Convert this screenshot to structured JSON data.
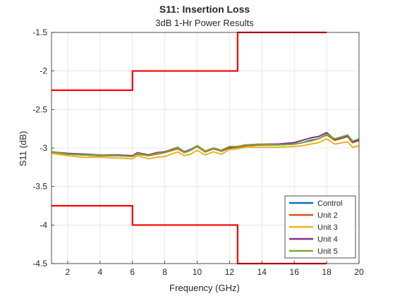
{
  "chart_data": {
    "type": "line",
    "title": "S11: Insertion Loss",
    "subtitle": "3dB 1-Hr Power Results",
    "xlabel": "Frequency (GHz)",
    "ylabel": "S11 (dB)",
    "xlim": [
      1,
      20
    ],
    "ylim": [
      -4.5,
      -1.5
    ],
    "xticks": [
      2,
      4,
      6,
      8,
      10,
      12,
      14,
      16,
      18,
      20
    ],
    "yticks": [
      -1.5,
      -2,
      -2.5,
      -3,
      -3.5,
      -4,
      -4.5
    ],
    "xtick_labels": [
      "2",
      "4",
      "6",
      "8",
      "10",
      "12",
      "14",
      "16",
      "18",
      "20"
    ],
    "ytick_labels": [
      "-1.5",
      "-2",
      "-2.5",
      "-3",
      "-3.5",
      "-4",
      "-4.5"
    ],
    "grid": true,
    "legend_position": "bottom-right",
    "series": [
      {
        "name": "Control",
        "color": "#0072BD",
        "x": [
          1,
          2,
          3,
          4,
          5,
          6,
          6.3,
          7,
          7.5,
          8,
          8.8,
          9.2,
          9.6,
          10,
          10.5,
          11,
          11.5,
          12,
          12.5,
          13,
          14,
          15,
          16,
          16.5,
          17,
          17.5,
          18,
          18.5,
          19,
          19.3,
          19.6,
          20
        ],
        "y": [
          -3.05,
          -3.08,
          -3.09,
          -3.1,
          -3.1,
          -3.11,
          -3.07,
          -3.1,
          -3.07,
          -3.06,
          -3.0,
          -3.06,
          -3.03,
          -2.98,
          -3.05,
          -3.01,
          -3.04,
          -3.0,
          -2.99,
          -2.97,
          -2.96,
          -2.96,
          -2.95,
          -2.93,
          -2.9,
          -2.88,
          -2.82,
          -2.9,
          -2.87,
          -2.85,
          -2.93,
          -2.9
        ]
      },
      {
        "name": "Unit 2",
        "color": "#D95319",
        "x": [
          1,
          2,
          3,
          4,
          5,
          6,
          6.3,
          7,
          7.5,
          8,
          8.8,
          9.2,
          9.6,
          10,
          10.5,
          11,
          11.5,
          12,
          12.5,
          13,
          14,
          15,
          16,
          16.5,
          17,
          17.5,
          18,
          18.5,
          19,
          19.3,
          19.6,
          20
        ],
        "y": [
          -3.06,
          -3.08,
          -3.09,
          -3.1,
          -3.1,
          -3.11,
          -3.08,
          -3.1,
          -3.08,
          -3.06,
          -3.01,
          -3.06,
          -3.03,
          -2.98,
          -3.05,
          -3.01,
          -3.04,
          -3.0,
          -2.99,
          -2.97,
          -2.96,
          -2.96,
          -2.95,
          -2.93,
          -2.91,
          -2.88,
          -2.83,
          -2.9,
          -2.87,
          -2.85,
          -2.93,
          -2.9
        ]
      },
      {
        "name": "Unit 3",
        "color": "#EDB120",
        "x": [
          1,
          2,
          3,
          4,
          5,
          6,
          6.3,
          7,
          7.5,
          8,
          8.8,
          9.2,
          9.6,
          10,
          10.5,
          11,
          11.5,
          12,
          12.5,
          13,
          14,
          15,
          16,
          16.5,
          17,
          17.5,
          18,
          18.5,
          19,
          19.3,
          19.6,
          20
        ],
        "y": [
          -3.07,
          -3.1,
          -3.12,
          -3.12,
          -3.13,
          -3.14,
          -3.1,
          -3.14,
          -3.12,
          -3.11,
          -3.05,
          -3.1,
          -3.08,
          -3.03,
          -3.09,
          -3.05,
          -3.08,
          -3.02,
          -3.01,
          -2.99,
          -2.99,
          -2.99,
          -2.98,
          -2.97,
          -2.95,
          -2.93,
          -2.88,
          -2.95,
          -2.93,
          -2.92,
          -2.99,
          -2.97
        ]
      },
      {
        "name": "Unit 4",
        "color": "#7E2F8E",
        "x": [
          1,
          2,
          3,
          4,
          5,
          6,
          6.3,
          7,
          7.5,
          8,
          8.8,
          9.2,
          9.6,
          10,
          10.5,
          11,
          11.5,
          12,
          12.5,
          13,
          14,
          15,
          16,
          16.5,
          17,
          17.5,
          18,
          18.5,
          19,
          19.3,
          19.6,
          20
        ],
        "y": [
          -3.05,
          -3.07,
          -3.08,
          -3.09,
          -3.09,
          -3.1,
          -3.06,
          -3.09,
          -3.06,
          -3.05,
          -2.99,
          -3.05,
          -3.02,
          -2.97,
          -3.04,
          -3.0,
          -3.03,
          -2.99,
          -2.98,
          -2.96,
          -2.95,
          -2.95,
          -2.93,
          -2.9,
          -2.87,
          -2.85,
          -2.8,
          -2.89,
          -2.86,
          -2.84,
          -2.92,
          -2.9
        ]
      },
      {
        "name": "Unit 5",
        "color": "#77AC30",
        "x": [
          1,
          2,
          3,
          4,
          5,
          6,
          6.3,
          7,
          7.5,
          8,
          8.8,
          9.2,
          9.6,
          10,
          10.5,
          11,
          11.5,
          12,
          12.5,
          13,
          14,
          15,
          16,
          16.5,
          17,
          17.5,
          18,
          18.5,
          19,
          19.3,
          19.6,
          20
        ],
        "y": [
          -3.05,
          -3.08,
          -3.09,
          -3.09,
          -3.1,
          -3.11,
          -3.07,
          -3.1,
          -3.07,
          -3.06,
          -2.99,
          -3.06,
          -3.03,
          -2.97,
          -3.04,
          -3.0,
          -3.03,
          -2.98,
          -2.98,
          -2.96,
          -2.95,
          -2.96,
          -2.95,
          -2.93,
          -2.91,
          -2.88,
          -2.82,
          -2.88,
          -2.85,
          -2.83,
          -2.91,
          -2.88
        ]
      }
    ],
    "limit_lines": {
      "color": "#FF0000",
      "upper": {
        "x": [
          1,
          6,
          6,
          12.5,
          12.5,
          18
        ],
        "y": [
          -2.25,
          -2.25,
          -2,
          -2,
          -1.5,
          -1.5
        ]
      },
      "lower": {
        "x": [
          1,
          6,
          6,
          12.5,
          12.5,
          18
        ],
        "y": [
          -3.75,
          -3.75,
          -4,
          -4,
          -4.5,
          -4.5
        ]
      }
    }
  }
}
